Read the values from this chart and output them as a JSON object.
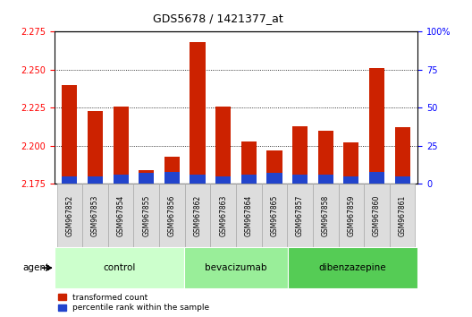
{
  "title": "GDS5678 / 1421377_at",
  "samples": [
    "GSM967852",
    "GSM967853",
    "GSM967854",
    "GSM967855",
    "GSM967856",
    "GSM967862",
    "GSM967863",
    "GSM967864",
    "GSM967865",
    "GSM967857",
    "GSM967858",
    "GSM967859",
    "GSM967860",
    "GSM967861"
  ],
  "red_values": [
    2.24,
    2.223,
    2.226,
    2.184,
    2.193,
    2.268,
    2.226,
    2.203,
    2.197,
    2.213,
    2.21,
    2.202,
    2.251,
    2.212
  ],
  "blue_values_pct": [
    5,
    5,
    6,
    7,
    8,
    6,
    5,
    6,
    7,
    6,
    6,
    5,
    8,
    5
  ],
  "ymin": 2.175,
  "ymax": 2.275,
  "y_ticks": [
    2.175,
    2.2,
    2.225,
    2.25,
    2.275
  ],
  "y2min": 0,
  "y2max": 100,
  "y2_ticks": [
    0,
    25,
    50,
    75,
    100
  ],
  "groups": [
    {
      "label": "control",
      "start": 0,
      "end": 4
    },
    {
      "label": "bevacizumab",
      "start": 5,
      "end": 8
    },
    {
      "label": "dibenzazepine",
      "start": 9,
      "end": 13
    }
  ],
  "group_colors": [
    "#ccffcc",
    "#99ee99",
    "#55cc55"
  ],
  "agent_label": "agent",
  "red_color": "#cc2200",
  "blue_color": "#2244cc",
  "bar_width": 0.6,
  "background_color": "#ffffff",
  "legend_red": "transformed count",
  "legend_blue": "percentile rank within the sample",
  "sample_box_color": "#dddddd",
  "sample_box_edge": "#aaaaaa"
}
